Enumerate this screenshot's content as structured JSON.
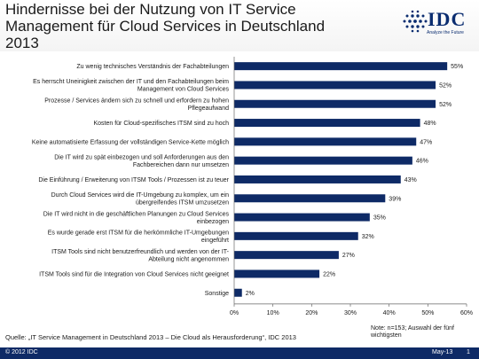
{
  "slide": {
    "title": "Hindernisse bei der Nutzung von IT Service Management für Cloud Services in Deutschland 2013"
  },
  "logo": {
    "text": "IDC",
    "tagline": "Analyze the Future"
  },
  "colors": {
    "bar": "#0e2a66",
    "footer": "#0e2a66",
    "logo": "#0b2d70"
  },
  "chart_data": {
    "type": "bar",
    "orientation": "horizontal",
    "categories": [
      [
        "Zu wenig technisches Verständnis der Fachabteilungen"
      ],
      [
        "Es herrscht Uneinigkeit zwischen der IT und den Fachabteilungen beim",
        "Management von Cloud Services"
      ],
      [
        "Prozesse / Services ändern sich zu schnell und erfordern zu hohen",
        "Pflegeaufwand"
      ],
      [
        "Kosten für Cloud-spezifisches ITSM sind zu hoch"
      ],
      [
        "Keine automatisierte Erfassung der vollständigen Service-Kette möglich"
      ],
      [
        "Die IT wird zu spät einbezogen und soll Anforderungen aus den",
        "Fachbereichen dann nur umsetzen"
      ],
      [
        "Die Einführung / Erweiterung von ITSM Tools / Prozessen ist zu teuer"
      ],
      [
        "Durch Cloud Services wird die IT-Umgebung zu komplex, um ein",
        "übergreifendes ITSM umzusetzen"
      ],
      [
        "Die IT wird nicht in die geschäftlichen Planungen zu Cloud Services",
        "einbezogen"
      ],
      [
        "Es wurde gerade erst ITSM für die herkömmliche IT-Umgebungen",
        "eingeführt"
      ],
      [
        "ITSM Tools sind nicht benutzerfreundlich und werden von der IT-",
        "Abteilung nicht angenommen"
      ],
      [
        "ITSM Tools sind für die Integration von Cloud Services nicht geeignet"
      ],
      [
        "Sonstige"
      ]
    ],
    "values": [
      55,
      52,
      52,
      48,
      47,
      46,
      43,
      39,
      35,
      32,
      27,
      22,
      2
    ],
    "value_labels": [
      "55%",
      "52%",
      "52%",
      "48%",
      "47%",
      "46%",
      "43%",
      "39%",
      "35%",
      "32%",
      "27%",
      "22%",
      "2%"
    ],
    "xlim": [
      0,
      60
    ],
    "xticks": [
      0,
      10,
      20,
      30,
      40,
      50,
      60
    ],
    "xtick_labels": [
      "0%",
      "10%",
      "20%",
      "30%",
      "40%",
      "50%",
      "60%"
    ],
    "grid": false
  },
  "source": "Quelle: „IT Service Management in Deutschland 2013 – Die Cloud als Herausforderung“, IDC 2013",
  "note": "Note: n=153; Auswahl der fünf wichtigsten",
  "footer": {
    "copyright": "© 2012 IDC",
    "date": "May-13",
    "page": "1"
  }
}
